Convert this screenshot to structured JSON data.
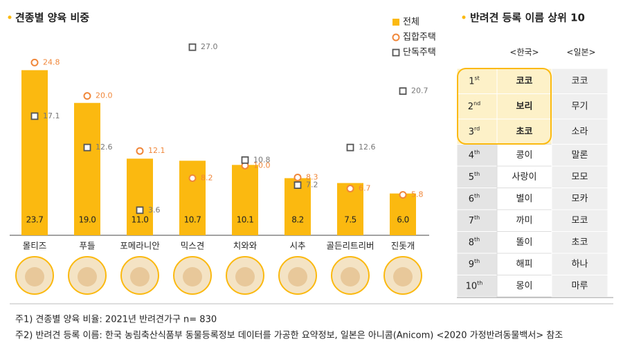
{
  "chart_data": {
    "type": "bar",
    "title": "견종별 양육 비중",
    "categories": [
      "몰티즈",
      "푸들",
      "포메라니안",
      "믹스견",
      "치와와",
      "시추",
      "골든리트리버",
      "진돗개"
    ],
    "series": [
      {
        "name": "전체",
        "marker": "bar",
        "color": "#fbb910",
        "values": [
          23.7,
          19.0,
          11.0,
          10.7,
          10.1,
          8.2,
          7.5,
          6.0
        ],
        "value_labels": [
          "23.7",
          "19.0",
          "11.0",
          "10.7",
          "10.1",
          "8.2",
          "7.5",
          "6.0"
        ]
      },
      {
        "name": "집합주택",
        "marker": "circle",
        "color": "#f0873a",
        "values": [
          24.8,
          20.0,
          12.1,
          8.2,
          10.0,
          8.3,
          6.7,
          5.8
        ],
        "value_labels": [
          "24.8",
          "20.0",
          "12.1",
          "8.2",
          "10.0",
          "8.3",
          "6.7",
          "5.8"
        ]
      },
      {
        "name": "단독주택",
        "marker": "square",
        "color": "#555555",
        "values": [
          17.1,
          12.6,
          3.6,
          27.0,
          10.8,
          7.2,
          12.6,
          20.7
        ],
        "value_labels": [
          "17.1",
          "12.6",
          "3.6",
          "27.0",
          "10.8",
          "7.2",
          "12.6",
          "20.7"
        ]
      }
    ],
    "ylim": [
      0,
      30
    ]
  },
  "table": {
    "title": "반려견 등록 이름 상위 10",
    "headers": [
      "<한국>",
      "<일본>"
    ],
    "rows": [
      {
        "rank": "1",
        "suffix": "st",
        "korea": "코코",
        "japan": "코코"
      },
      {
        "rank": "2",
        "suffix": "nd",
        "korea": "보리",
        "japan": "무기"
      },
      {
        "rank": "3",
        "suffix": "rd",
        "korea": "초코",
        "japan": "소라"
      },
      {
        "rank": "4",
        "suffix": "th",
        "korea": "콩이",
        "japan": "말론"
      },
      {
        "rank": "5",
        "suffix": "th",
        "korea": "사랑이",
        "japan": "모모"
      },
      {
        "rank": "6",
        "suffix": "th",
        "korea": "별이",
        "japan": "모카"
      },
      {
        "rank": "7",
        "suffix": "th",
        "korea": "까미",
        "japan": "모코"
      },
      {
        "rank": "8",
        "suffix": "th",
        "korea": "똘이",
        "japan": "초코"
      },
      {
        "rank": "9",
        "suffix": "th",
        "korea": "해피",
        "japan": "하나"
      },
      {
        "rank": "10",
        "suffix": "th",
        "korea": "몽이",
        "japan": "마루"
      }
    ]
  },
  "footnotes": [
    "주1) 견종별 양육 비율: 2021년 반려견가구 n= 830",
    "주2) 반려견 등록 이름: 한국 농림축산식품부 동물등록정보 데이터를 가공한 요약정보, 일본은 아니콤(Anicom) <2020 가정반려동물백서> 참조"
  ]
}
